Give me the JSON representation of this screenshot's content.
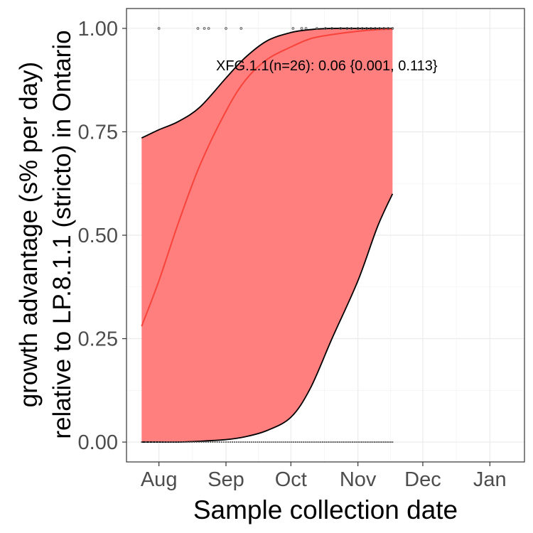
{
  "chart_data": {
    "type": "area",
    "xlabel": "Sample collection date",
    "ylabel_line1": "growth advantage (s% per day)",
    "ylabel_line2": "relative to LP.8.1.1 (stricto) in Ontario",
    "annotation": "XFG.1.1(n=26): 0.06 {0.001, 0.113}",
    "x_ticks": [
      "Aug",
      "Sep",
      "Oct",
      "Nov",
      "Dec",
      "Jan"
    ],
    "x_tick_dates": [
      "2025-08-01",
      "2025-09-01",
      "2025-10-01",
      "2025-11-01",
      "2025-12-01",
      "2026-01-01"
    ],
    "xlim": [
      "2025-07-17",
      "2026-01-17"
    ],
    "y_ticks": [
      "0.00",
      "0.25",
      "0.50",
      "0.75",
      "1.00"
    ],
    "y_tick_values": [
      0,
      0.25,
      0.5,
      0.75,
      1
    ],
    "ylim": [
      -0.048,
      1.048
    ],
    "grid": true,
    "colors": {
      "ribbon": "#ff7f7f",
      "fit_line": "#f8433a",
      "ci_line": "#000000",
      "points": "#555555"
    },
    "series": [
      {
        "name": "XFG.1.1",
        "x": [
          "2025-07-24",
          "2025-08-01",
          "2025-08-10",
          "2025-08-20",
          "2025-09-01",
          "2025-09-10",
          "2025-09-20",
          "2025-10-01",
          "2025-10-10",
          "2025-10-20",
          "2025-11-01",
          "2025-11-10",
          "2025-11-17"
        ],
        "fit": [
          0.28,
          0.39,
          0.53,
          0.67,
          0.8,
          0.875,
          0.925,
          0.955,
          0.975,
          0.985,
          0.993,
          0.997,
          0.998
        ],
        "upper": [
          0.735,
          0.755,
          0.775,
          0.81,
          0.88,
          0.93,
          0.97,
          0.99,
          0.997,
          1.0,
          1.0,
          1.0,
          1.0
        ],
        "lower": [
          0.0,
          0.0,
          0.0,
          0.002,
          0.006,
          0.013,
          0.028,
          0.06,
          0.13,
          0.25,
          0.39,
          0.52,
          0.6
        ]
      }
    ],
    "observations_y1": [
      "2025-08-01",
      "2025-08-19",
      "2025-08-22",
      "2025-08-24",
      "2025-09-01",
      "2025-09-08",
      "2025-10-02",
      "2025-10-06",
      "2025-10-08",
      "2025-10-13",
      "2025-10-17",
      "2025-10-20",
      "2025-10-24",
      "2025-10-27",
      "2025-10-29",
      "2025-11-01",
      "2025-11-03",
      "2025-11-05",
      "2025-11-07",
      "2025-11-09",
      "2025-11-11",
      "2025-11-13",
      "2025-11-15",
      "2025-11-17"
    ],
    "observations_y0_start": "2025-07-24",
    "observations_y0_end": "2025-11-17",
    "observations_y0_count": 120
  }
}
